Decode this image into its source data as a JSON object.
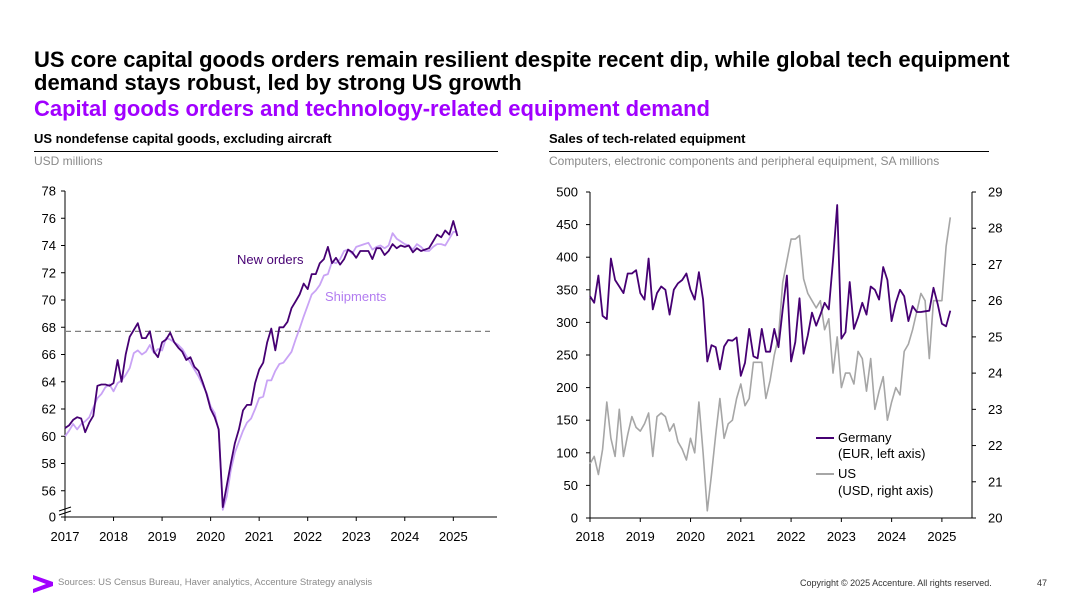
{
  "header": {
    "title": "US core capital goods orders remain resilient despite recent dip, while global tech equipment demand stays robust, led by strong US growth",
    "subtitle": "Capital goods orders and technology-related equipment demand"
  },
  "colors": {
    "accent": "#a100ff",
    "dark_purple": "#460073",
    "light_purple": "#c9a3f5",
    "gray_series": "#a6a6a6",
    "reference_line": "#808080"
  },
  "left_panel": {
    "title": "US nondefense capital goods, excluding aircraft",
    "unit": "USD millions"
  },
  "right_panel": {
    "title": "Sales of tech-related equipment",
    "unit": "Computers, electronic components and peripheral equipment, SA millions"
  },
  "chart_data": [
    {
      "type": "line",
      "title": "US nondefense capital goods, excluding aircraft",
      "ylabel": "USD millions",
      "ylim": [
        54,
        78
      ],
      "y_axis_break": true,
      "y_ticks": [
        "0",
        "56",
        "58",
        "60",
        "62",
        "64",
        "66",
        "68",
        "70",
        "72",
        "74",
        "76",
        "78"
      ],
      "x_ticks": [
        "2017",
        "2018",
        "2019",
        "2020",
        "2021",
        "2022",
        "2023",
        "2024",
        "2025"
      ],
      "x_start": 2017.0,
      "x_step": 0.0833333,
      "reference_line": 67.7,
      "series": [
        {
          "name": "New orders",
          "values": [
            60.6,
            60.8,
            61.2,
            61.4,
            61.3,
            60.3,
            61.0,
            61.5,
            63.7,
            63.8,
            63.8,
            63.7,
            63.9,
            65.6,
            64.0,
            66.0,
            67.3,
            67.8,
            68.3,
            67.2,
            67.2,
            67.7,
            66.2,
            65.8,
            66.9,
            67.1,
            67.6,
            66.9,
            66.5,
            66.2,
            65.6,
            65.8,
            65.1,
            64.8,
            64.0,
            63.1,
            62.0,
            61.4,
            60.5,
            54.8,
            56.4,
            58.0,
            59.5,
            60.5,
            61.9,
            62.3,
            62.3,
            63.9,
            64.9,
            65.4,
            66.9,
            67.9,
            66.3,
            68.0,
            68.0,
            68.4,
            69.4,
            69.9,
            70.4,
            71.2,
            70.8,
            71.9,
            71.9,
            72.7,
            73.0,
            73.9,
            72.7,
            73.1,
            72.6,
            73.0,
            73.7,
            73.5,
            73.1,
            73.6,
            73.6,
            73.6,
            73.0,
            73.8,
            73.8,
            73.3,
            73.6,
            74.1,
            73.8,
            74.0,
            73.9,
            74.0,
            73.5,
            73.8,
            73.6,
            73.7,
            73.8,
            74.3,
            74.8,
            74.6,
            75.1,
            74.8,
            75.8,
            74.7
          ]
        },
        {
          "name": "Shipments",
          "values": [
            60.0,
            60.4,
            60.9,
            60.5,
            60.9,
            61.1,
            61.4,
            62.1,
            62.8,
            63.1,
            63.6,
            63.8,
            63.3,
            63.9,
            64.1,
            64.5,
            65.0,
            66.1,
            66.3,
            66.0,
            66.2,
            66.7,
            66.1,
            66.4,
            66.3,
            67.2,
            67.1,
            66.9,
            66.7,
            66.4,
            65.9,
            65.4,
            64.9,
            64.4,
            63.8,
            63.2,
            62.2,
            61.7,
            60.4,
            54.6,
            55.6,
            57.5,
            58.8,
            59.6,
            60.4,
            61.0,
            61.3,
            62.0,
            62.8,
            62.9,
            64.1,
            64.1,
            64.8,
            65.3,
            65.4,
            65.8,
            66.2,
            67.1,
            67.9,
            68.8,
            69.6,
            70.4,
            70.7,
            71.1,
            71.8,
            71.9,
            72.8,
            72.7,
            73.0,
            73.6,
            73.7,
            73.4,
            73.9,
            74.0,
            74.1,
            74.2,
            73.7,
            73.9,
            74.0,
            73.8,
            74.0,
            74.9,
            74.5,
            74.3,
            74.1,
            74.0,
            73.7,
            74.1,
            73.9,
            73.6,
            73.6,
            73.9,
            74.1,
            74.1,
            74.0,
            74.5,
            75.0,
            75.0
          ]
        }
      ],
      "annotations": [
        "New orders",
        "Shipments"
      ]
    },
    {
      "type": "line",
      "title": "Sales of tech-related equipment",
      "ylabel": "Computers, electronic components and peripheral equipment, SA millions",
      "ylim_left": [
        0,
        500
      ],
      "ylim_right": [
        20,
        29
      ],
      "y_ticks_left": [
        "0",
        "50",
        "100",
        "150",
        "200",
        "250",
        "300",
        "350",
        "400",
        "450",
        "500"
      ],
      "y_ticks_right": [
        "20",
        "21",
        "22",
        "23",
        "24",
        "25",
        "26",
        "27",
        "28",
        "29"
      ],
      "x_ticks": [
        "2018",
        "2019",
        "2020",
        "2021",
        "2022",
        "2023",
        "2024",
        "2025"
      ],
      "x_start": 2018.0,
      "x_step": 0.0833333,
      "series": [
        {
          "name": "Germany",
          "legend_label": "Germany",
          "legend_sub": "(EUR, left axis)",
          "axis": "left",
          "values": [
            340,
            330,
            372,
            310,
            305,
            398,
            365,
            355,
            345,
            375,
            375,
            380,
            345,
            335,
            398,
            320,
            345,
            355,
            350,
            312,
            350,
            360,
            365,
            375,
            350,
            335,
            377,
            335,
            240,
            265,
            262,
            228,
            263,
            273,
            272,
            277,
            218,
            238,
            290,
            248,
            245,
            290,
            255,
            255,
            290,
            262,
            320,
            372,
            240,
            270,
            337,
            252,
            280,
            315,
            295,
            312,
            330,
            320,
            395,
            480,
            275,
            285,
            362,
            290,
            308,
            330,
            312,
            355,
            350,
            335,
            385,
            365,
            302,
            330,
            350,
            340,
            302,
            325,
            316,
            316,
            317,
            318,
            353,
            328,
            298,
            294,
            318
          ]
        },
        {
          "name": "US",
          "legend_label": "US",
          "legend_sub": "(USD, right axis)",
          "axis": "right",
          "values": [
            21.5,
            21.7,
            21.2,
            21.9,
            23.2,
            22.2,
            21.7,
            23.0,
            21.7,
            22.3,
            22.8,
            22.5,
            22.4,
            22.6,
            22.9,
            21.7,
            22.8,
            22.9,
            22.8,
            22.4,
            22.6,
            22.1,
            21.9,
            21.6,
            22.2,
            21.8,
            23.2,
            21.8,
            20.2,
            21.2,
            22.3,
            23.3,
            22.2,
            22.6,
            22.7,
            23.3,
            23.7,
            23.1,
            23.3,
            24.3,
            24.3,
            24.3,
            23.3,
            23.8,
            24.5,
            25.0,
            26.5,
            27.1,
            27.7,
            27.7,
            27.8,
            26.6,
            26.2,
            26.0,
            25.8,
            26.0,
            25.2,
            25.5,
            24.0,
            25.0,
            23.6,
            24.0,
            24.0,
            23.7,
            24.6,
            24.4,
            23.5,
            24.4,
            23.0,
            23.5,
            23.9,
            22.7,
            23.2,
            23.6,
            23.4,
            24.6,
            24.8,
            25.2,
            25.7,
            26.2,
            26.0,
            24.4,
            26.0,
            26.0,
            26.0,
            27.5,
            28.3
          ]
        }
      ]
    }
  ],
  "footer": {
    "sources": "Sources: US Census Bureau, Haver analytics, Accenture Strategy analysis",
    "copyright": "Copyright © 2025 Accenture. All rights reserved.",
    "page_number": "47",
    "logo_icon": "accenture-greater-than-icon"
  }
}
